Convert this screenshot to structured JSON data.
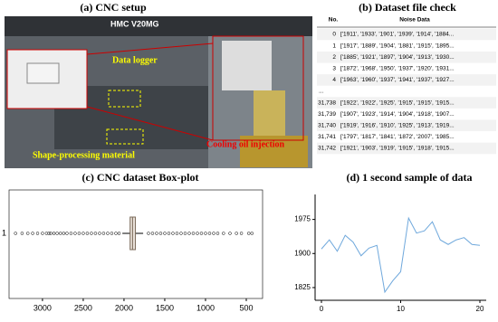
{
  "panel_a": {
    "title": "(a) CNC setup",
    "machine_label": "HMC V20MG",
    "annotations": [
      "Data logger",
      "Shape-processing material",
      "Cooling oil injection"
    ]
  },
  "panel_b": {
    "title": "(b) Dataset file check",
    "table": {
      "header": [
        "No.",
        "Noise Data"
      ],
      "rows": [
        [
          "0",
          "['1911', '1933', '1901', '1939', '1914', '1884..."
        ],
        [
          "1",
          "['1917', '1889', '1904', '1881', '1915', '1895..."
        ],
        [
          "2",
          "['1885', '1921', '1897', '1904', '1913', '1930..."
        ],
        [
          "3",
          "['1872', '1968', '1950', '1937', '1920', '1931..."
        ],
        [
          "4",
          "['1963', '1960', '1937', '1941', '1937', '1927..."
        ],
        [
          "..."
        ],
        [
          "31,738",
          "['1922', '1922', '1925', '1915', '1915', '1915..."
        ],
        [
          "31,739",
          "['1907', '1923', '1914', '1904', '1918', '1907..."
        ],
        [
          "31,740",
          "['1919', '1916', '1910', '1925', '1913', '1919..."
        ],
        [
          "31,741",
          "['1797', '1817', '1841', '1872', '2007', '1985..."
        ],
        [
          "31,742",
          "['1921', '1903', '1919', '1915', '1918', '1915..."
        ]
      ]
    }
  },
  "chart_data": [
    {
      "type": "box",
      "title": "(c) CNC dataset Box-plot",
      "categories": [
        "1"
      ],
      "whisker_low": [
        1765
      ],
      "q1": [
        1860
      ],
      "median": [
        1895
      ],
      "q3": [
        1925
      ],
      "whisker_high": [
        2020
      ],
      "outliers": [
        3330,
        3250,
        3180,
        3120,
        3060,
        3000,
        2950,
        2920,
        2900,
        2860,
        2820,
        2780,
        2740,
        2700,
        2650,
        2600,
        2550,
        2500,
        2450,
        2400,
        2350,
        2300,
        2250,
        2200,
        2150,
        2100,
        2060,
        1700,
        1650,
        1600,
        1550,
        1500,
        1450,
        1400,
        1350,
        1300,
        1250,
        1200,
        1150,
        1100,
        1050,
        1000,
        950,
        900,
        850,
        780,
        700,
        620,
        560,
        470,
        430
      ],
      "xlim": [
        3410,
        300
      ],
      "xticks": [
        3000,
        2500,
        2000,
        1500,
        1000,
        500
      ]
    },
    {
      "type": "line",
      "title": "(d) 1 second sample of data",
      "x": [
        0,
        1,
        2,
        3,
        4,
        5,
        6,
        7,
        8,
        9,
        10,
        11,
        12,
        13,
        14,
        15,
        16,
        17,
        18,
        19,
        20
      ],
      "values": [
        1910,
        1930,
        1905,
        1940,
        1925,
        1895,
        1912,
        1918,
        1815,
        1840,
        1860,
        1978,
        1945,
        1950,
        1970,
        1930,
        1920,
        1930,
        1935,
        1920,
        1918
      ],
      "color": "#6fa8dc",
      "xlim": [
        -0.8,
        20.8
      ],
      "xticks": [
        0,
        10,
        20
      ],
      "ylim": [
        1797,
        2030
      ],
      "yticks": [
        1825,
        1900,
        1975
      ]
    }
  ]
}
